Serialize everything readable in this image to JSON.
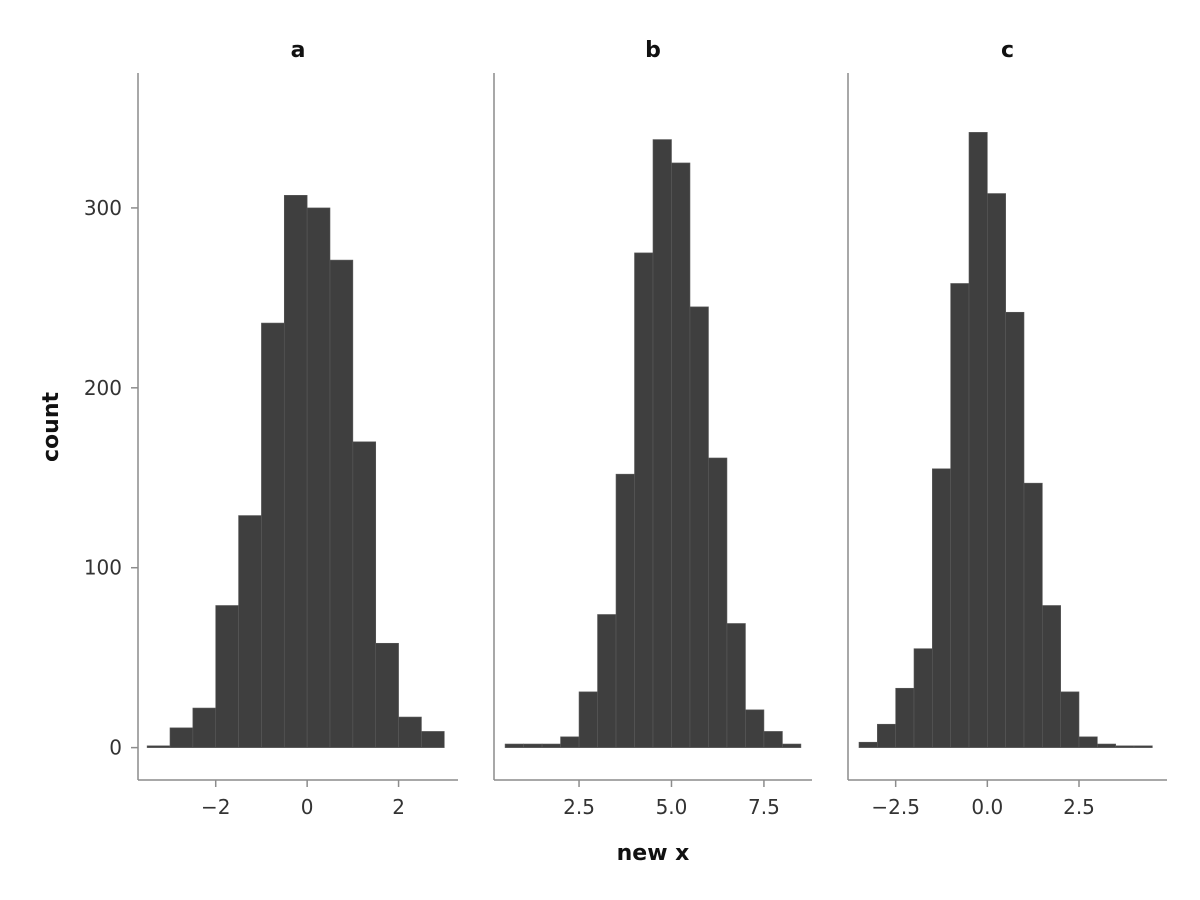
{
  "chart_data": {
    "type": "bar",
    "subtype": "faceted-histogram",
    "xlabel": "new x",
    "ylabel": "count",
    "ylim": [
      -18,
      375
    ],
    "yticks": [
      0,
      100,
      200,
      300
    ],
    "grid": false,
    "legend": "none",
    "bar_color": "#3f3f3f",
    "panels": [
      {
        "title": "a",
        "xlim": [
          -3.7,
          3.3
        ],
        "xticks": [
          {
            "value": -2,
            "label": "−2"
          },
          {
            "value": 0,
            "label": "0"
          },
          {
            "value": 2,
            "label": "2"
          }
        ],
        "bin_edges": [
          -3.5,
          -3.0,
          -2.5,
          -2.0,
          -1.5,
          -1.0,
          -0.5,
          0.0,
          0.5,
          1.0,
          1.5,
          2.0,
          2.5,
          3.0
        ],
        "counts": [
          1,
          11,
          22,
          79,
          129,
          236,
          307,
          300,
          271,
          170,
          58,
          17,
          9
        ]
      },
      {
        "title": "b",
        "xlim": [
          0.2,
          8.8
        ],
        "xticks": [
          {
            "value": 2.5,
            "label": "2.5"
          },
          {
            "value": 5.0,
            "label": "5.0"
          },
          {
            "value": 7.5,
            "label": "7.5"
          }
        ],
        "bin_edges": [
          0.5,
          1.0,
          1.5,
          2.0,
          2.5,
          3.0,
          3.5,
          4.0,
          4.5,
          5.0,
          5.5,
          6.0,
          6.5,
          7.0,
          7.5,
          8.0,
          8.5
        ],
        "counts": [
          2,
          2,
          2,
          6,
          31,
          74,
          152,
          275,
          338,
          325,
          245,
          161,
          69,
          21,
          9,
          2
        ]
      },
      {
        "title": "c",
        "xlim": [
          -3.8,
          4.9
        ],
        "xticks": [
          {
            "value": -2.5,
            "label": "−2.5"
          },
          {
            "value": 0.0,
            "label": "0.0"
          },
          {
            "value": 2.5,
            "label": "2.5"
          }
        ],
        "bin_edges": [
          -3.5,
          -3.0,
          -2.5,
          -2.0,
          -1.5,
          -1.0,
          -0.5,
          0.0,
          0.5,
          1.0,
          1.5,
          2.0,
          2.5,
          3.0,
          3.5,
          4.0,
          4.5
        ],
        "counts": [
          3,
          13,
          33,
          55,
          155,
          258,
          342,
          308,
          242,
          147,
          79,
          31,
          6,
          2,
          1,
          1
        ]
      }
    ]
  }
}
